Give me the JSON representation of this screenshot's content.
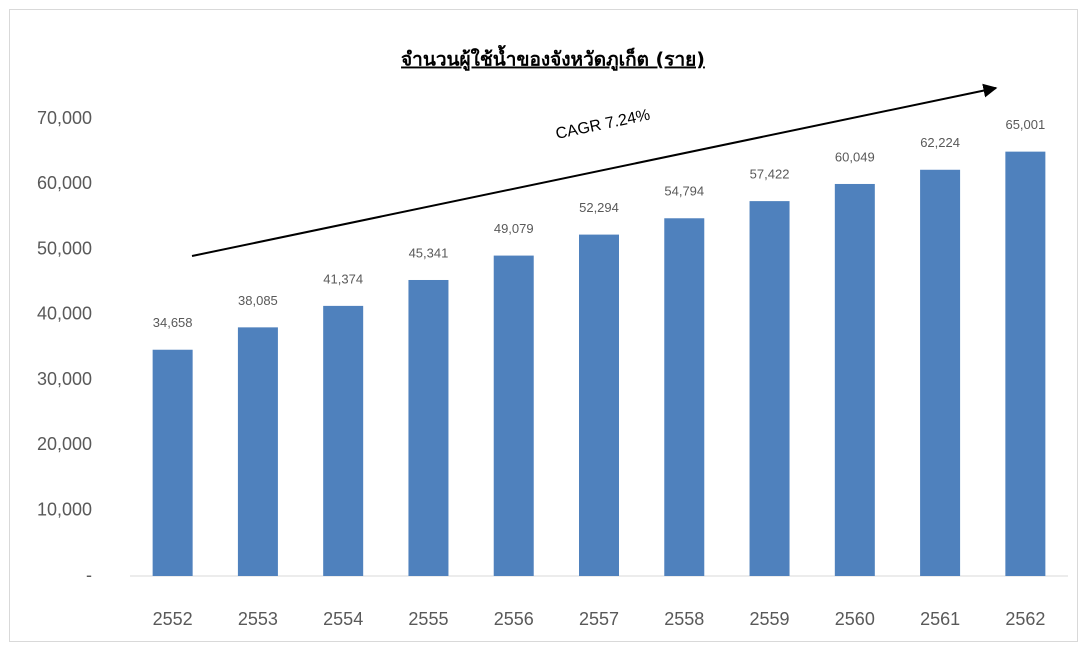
{
  "chart_data": {
    "type": "bar",
    "title": "จำนวนผู้ใช้น้ำของจังหวัดภูเก็ต (ราย)",
    "annotation": "CAGR 7.24%",
    "categories": [
      "2552",
      "2553",
      "2554",
      "2555",
      "2556",
      "2557",
      "2558",
      "2559",
      "2560",
      "2561",
      "2562"
    ],
    "values": [
      34658,
      38085,
      41374,
      45341,
      49079,
      52294,
      54794,
      57422,
      60049,
      62224,
      65001
    ],
    "value_labels": [
      "34,658",
      "38,085",
      "41,374",
      "45,341",
      "49,079",
      "52,294",
      "54,794",
      "57,422",
      "60,049",
      "62,224",
      "65,001"
    ],
    "color": "#4f81bd",
    "ylim": [
      0,
      70000
    ],
    "yticks": [
      {
        "value": 0,
        "label": "-"
      },
      {
        "value": 10000,
        "label": "10,000"
      },
      {
        "value": 20000,
        "label": "20,000"
      },
      {
        "value": 30000,
        "label": "30,000"
      },
      {
        "value": 40000,
        "label": "40,000"
      },
      {
        "value": 50000,
        "label": "50,000"
      },
      {
        "value": 60000,
        "label": "60,000"
      },
      {
        "value": 70000,
        "label": "70,000"
      }
    ],
    "grid": false
  }
}
